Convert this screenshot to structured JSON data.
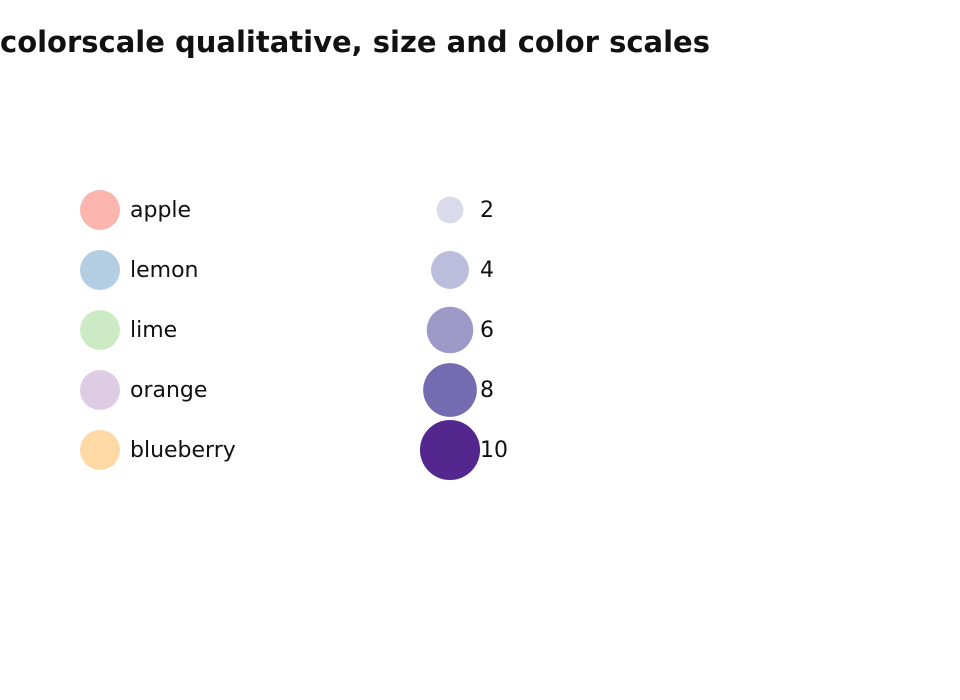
{
  "title": "colorscale qualitative, size and color scales",
  "qualitative_legend": {
    "items": [
      {
        "label": "apple",
        "color": "#fbb4ae"
      },
      {
        "label": "lemon",
        "color": "#b3cde3"
      },
      {
        "label": "lime",
        "color": "#ccebc5"
      },
      {
        "label": "orange",
        "color": "#decbe4"
      },
      {
        "label": "blueberry",
        "color": "#fed9a6"
      }
    ]
  },
  "size_legend": {
    "items": [
      {
        "value": 2,
        "color": "#dadaeb"
      },
      {
        "value": 4,
        "color": "#bcbddc"
      },
      {
        "value": 6,
        "color": "#9e9ac8"
      },
      {
        "value": 8,
        "color": "#756bb1"
      },
      {
        "value": 10,
        "color": "#54278f"
      }
    ]
  }
}
